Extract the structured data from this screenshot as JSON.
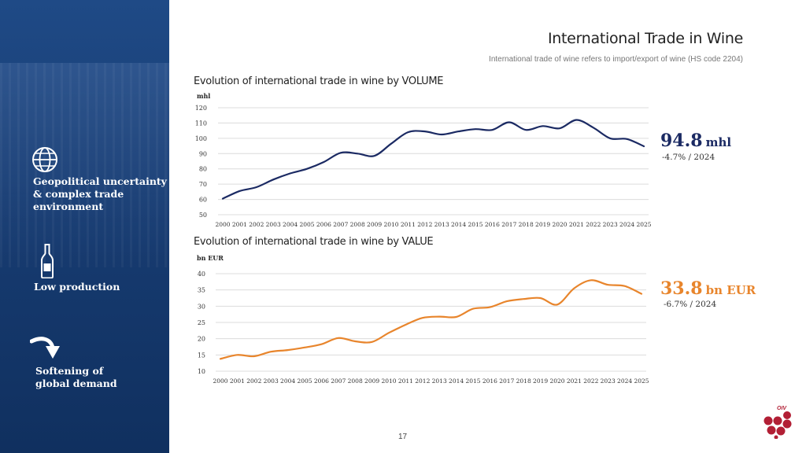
{
  "header": {
    "title": "International Trade in Wine",
    "subtitle": "International trade of wine refers to import/export of wine (HS code 2204)"
  },
  "sidebar": {
    "items": [
      {
        "icon": "globe-icon",
        "lines": [
          "Geopolitical uncertainty",
          "& complex trade",
          "environment"
        ]
      },
      {
        "icon": "wine-bottle-icon",
        "lines": [
          "Low production"
        ]
      },
      {
        "icon": "curved-arrow-down-icon",
        "lines": [
          "Softening of",
          "global demand"
        ]
      }
    ]
  },
  "chart_data": [
    {
      "type": "line",
      "title": "Evolution of international trade in wine by VOLUME",
      "ylabel": "mhl",
      "x": [
        "2000",
        "2001",
        "2002",
        "2003",
        "2004",
        "2005",
        "2006",
        "2007",
        "2008",
        "2009",
        "2010",
        "2011",
        "2012",
        "2013",
        "2014",
        "2015",
        "2016",
        "2017",
        "2018",
        "2019",
        "2020",
        "2021",
        "2022",
        "2023",
        "2024",
        "2025"
      ],
      "values": [
        60.5,
        65.5,
        68,
        73,
        77,
        80,
        84.5,
        90.5,
        90,
        88.5,
        96.5,
        104,
        104.5,
        102.5,
        104.5,
        106,
        105.5,
        110.5,
        105.5,
        108,
        106.5,
        112,
        107,
        100,
        99.5,
        94.8
      ],
      "ylim": [
        50,
        120
      ],
      "yticks": [
        50,
        60,
        70,
        80,
        90,
        100,
        110,
        120
      ],
      "color": "#1b2a63",
      "grid": true
    },
    {
      "type": "line",
      "title": "Evolution of international trade in wine by VALUE",
      "ylabel": "bn EUR",
      "x": [
        "2000",
        "2001",
        "2002",
        "2003",
        "2004",
        "2005",
        "2006",
        "2007",
        "2008",
        "2009",
        "2010",
        "2011",
        "2012",
        "2013",
        "2014",
        "2015",
        "2016",
        "2017",
        "2018",
        "2019",
        "2020",
        "2021",
        "2022",
        "2023",
        "2024",
        "2025"
      ],
      "values": [
        13.8,
        15,
        14.6,
        16,
        16.5,
        17.3,
        18.3,
        20.2,
        19.2,
        19,
        21.8,
        24.3,
        26.4,
        26.8,
        26.7,
        29.2,
        29.7,
        31.5,
        32.2,
        32.5,
        30.5,
        35.5,
        38,
        36.6,
        36.2,
        33.8
      ],
      "ylim": [
        10,
        40
      ],
      "yticks": [
        10,
        15,
        20,
        25,
        30,
        35,
        40
      ],
      "color": "#e8852c",
      "grid": true
    }
  ],
  "kpis": {
    "volume": {
      "value": "94.8",
      "unit": "mhl",
      "change": "-4.7% / 2024",
      "color": "#1b2a63"
    },
    "value": {
      "value": "33.8",
      "unit": "bn EUR",
      "change": "-6.7% / 2024",
      "color": "#e8852c"
    }
  },
  "footer": {
    "page_number": "17",
    "logo_text": "OIV"
  }
}
